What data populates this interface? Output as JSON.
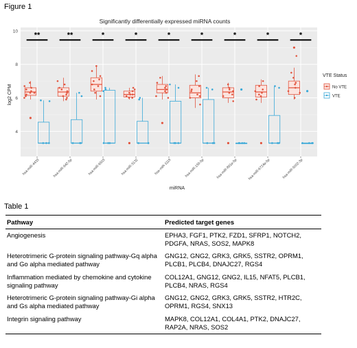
{
  "figure_label": "Figure 1",
  "table_label": "Table 1",
  "chart_data": {
    "type": "box",
    "title": "Significantly differentially expressed miRNA counts",
    "xlabel": "miRNA",
    "ylabel": "log2 CPM",
    "ylim": [
      2.5,
      10.2
    ],
    "yticks": [
      4,
      6,
      8,
      10
    ],
    "grid": true,
    "legend_title": "VTE Status",
    "legend_position": "right",
    "categories": [
      "hsa-miR-4433",
      "hsa-miR-942-5p",
      "hsa-miR-6503",
      "hsa-miR-3132",
      "hsa-miR-1118",
      "hsa-miR-155-5p",
      "hsa-miR-891a-5p",
      "hsa-miR-6724a-5p",
      "hsa-miR-5002-3p"
    ],
    "significance": [
      "**",
      "**",
      "*",
      "*",
      "*",
      "*",
      "*",
      "*",
      "*"
    ],
    "series": [
      {
        "name": "No VTE",
        "color": "#e2553f",
        "boxes": [
          {
            "q1": 6.15,
            "median": 6.35,
            "q3": 6.6,
            "whisker_low": 5.9,
            "whisker_high": 7.0,
            "outliers": [
              4.8
            ],
            "points": [
              6.0,
              6.2,
              6.3,
              6.4,
              6.5,
              6.6,
              6.9,
              6.1,
              6.3,
              6.7
            ]
          },
          {
            "q1": 6.1,
            "median": 6.35,
            "q3": 6.6,
            "whisker_low": 5.8,
            "whisker_high": 7.2,
            "outliers": [],
            "points": [
              5.9,
              6.1,
              6.3,
              6.4,
              6.6,
              6.8,
              7.0,
              6.2,
              6.5,
              6.0
            ]
          },
          {
            "q1": 6.4,
            "median": 6.8,
            "q3": 7.2,
            "whisker_low": 5.9,
            "whisker_high": 7.9,
            "outliers": [],
            "points": [
              6.1,
              6.5,
              6.8,
              7.0,
              7.3,
              7.6,
              7.9,
              6.7,
              6.3,
              7.1
            ]
          },
          {
            "q1": 6.05,
            "median": 6.2,
            "q3": 6.4,
            "whisker_low": 5.9,
            "whisker_high": 6.6,
            "outliers": [
              3.3
            ],
            "points": [
              6.0,
              6.1,
              6.2,
              6.3,
              6.4,
              6.5,
              6.6,
              6.2,
              6.0
            ]
          },
          {
            "q1": 6.3,
            "median": 6.5,
            "q3": 6.8,
            "whisker_low": 5.9,
            "whisker_high": 7.3,
            "outliers": [
              4.5
            ],
            "points": [
              6.1,
              6.3,
              6.5,
              6.6,
              6.9,
              7.2,
              6.4,
              6.7,
              6.0
            ]
          },
          {
            "q1": 6.0,
            "median": 6.3,
            "q3": 6.75,
            "whisker_low": 5.4,
            "whisker_high": 7.4,
            "outliers": [],
            "points": [
              5.6,
              6.0,
              6.2,
              6.4,
              6.7,
              7.0,
              7.3,
              6.1,
              6.5
            ]
          },
          {
            "q1": 6.0,
            "median": 6.35,
            "q3": 6.6,
            "whisker_low": 5.7,
            "whisker_high": 6.9,
            "outliers": [
              3.3
            ],
            "points": [
              5.8,
              6.1,
              6.3,
              6.4,
              6.6,
              6.8,
              6.2,
              6.5
            ]
          },
          {
            "q1": 6.05,
            "median": 6.35,
            "q3": 6.75,
            "whisker_low": 5.7,
            "whisker_high": 7.1,
            "outliers": [
              3.3
            ],
            "points": [
              5.9,
              6.1,
              6.3,
              6.5,
              6.7,
              7.0,
              6.2,
              6.4
            ]
          },
          {
            "q1": 6.2,
            "median": 6.6,
            "q3": 7.0,
            "whisker_low": 5.9,
            "whisker_high": 7.8,
            "outliers": [
              9.0
            ],
            "points": [
              6.0,
              6.3,
              6.6,
              6.9,
              7.2,
              7.5,
              8.5,
              6.4,
              6.8
            ]
          }
        ]
      },
      {
        "name": "VTE",
        "color": "#3aa9d8",
        "boxes": [
          {
            "q1": 3.3,
            "median": 3.3,
            "q3": 4.55,
            "whisker_low": 3.3,
            "whisker_high": 5.85,
            "outliers": [],
            "points": [
              3.3,
              3.3,
              3.3,
              5.8,
              5.85
            ]
          },
          {
            "q1": 3.3,
            "median": 3.3,
            "q3": 4.7,
            "whisker_low": 3.3,
            "whisker_high": 6.3,
            "outliers": [],
            "points": [
              3.3,
              3.3,
              3.3,
              6.3,
              6.1
            ]
          },
          {
            "q1": 3.3,
            "median": 3.3,
            "q3": 6.45,
            "whisker_low": 3.3,
            "whisker_high": 6.6,
            "outliers": [],
            "points": [
              3.3,
              3.3,
              3.3,
              6.4,
              6.5,
              6.6
            ]
          },
          {
            "q1": 3.3,
            "median": 3.3,
            "q3": 4.6,
            "whisker_low": 3.3,
            "whisker_high": 6.0,
            "outliers": [],
            "points": [
              3.3,
              3.3,
              3.3,
              5.9,
              6.0
            ]
          },
          {
            "q1": 3.3,
            "median": 3.3,
            "q3": 5.8,
            "whisker_low": 3.3,
            "whisker_high": 6.8,
            "outliers": [],
            "points": [
              3.3,
              3.3,
              3.3,
              6.6,
              6.8
            ]
          },
          {
            "q1": 3.3,
            "median": 3.3,
            "q3": 5.9,
            "whisker_low": 3.3,
            "whisker_high": 6.6,
            "outliers": [],
            "points": [
              3.3,
              3.3,
              3.3,
              6.5,
              6.6
            ]
          },
          {
            "q1": 3.3,
            "median": 3.3,
            "q3": 3.3,
            "whisker_low": 3.3,
            "whisker_high": 3.3,
            "outliers": [
              6.5
            ],
            "points": [
              3.3,
              3.3,
              3.3,
              3.3
            ]
          },
          {
            "q1": 3.3,
            "median": 3.3,
            "q3": 4.95,
            "whisker_low": 3.3,
            "whisker_high": 6.7,
            "outliers": [],
            "points": [
              3.3,
              3.3,
              3.3,
              6.6,
              6.7
            ]
          },
          {
            "q1": 3.3,
            "median": 3.3,
            "q3": 3.3,
            "whisker_low": 3.3,
            "whisker_high": 3.3,
            "outliers": [
              6.4
            ],
            "points": [
              3.3,
              3.3,
              3.3,
              3.3
            ]
          }
        ]
      }
    ]
  },
  "table": {
    "headers": [
      "Pathway",
      "Predicted target genes"
    ],
    "rows": [
      {
        "pathway": "Angiogenesis",
        "genes": "EPHA3, FGF1, PTK2, FZD1, SFRP1, NOTCH2, PDGFA, NRAS, SOS2, MAPK8"
      },
      {
        "pathway": "Heterotrimeric G-protein signaling pathway-Gq alpha and Go alpha mediated pathway",
        "genes": "GNG12, GNG2, GRK3, GRK5, SSTR2, OPRM1, PLCB1, PLCB4, DNAJC27, RGS4"
      },
      {
        "pathway": "Inflammation mediated by chemokine and cytokine signaling pathway",
        "genes": "COL12A1, GNG12, GNG2, IL15, NFAT5, PLCB1, PLCB4, NRAS, RGS4"
      },
      {
        "pathway": "Heterotrimeric G-protein signaling pathway-Gi alpha and Gs alpha mediated pathway",
        "genes": "GNG12, GNG2, GRK3, GRK5, SSTR2, HTR2C, OPRM1, RGS4, SNX13"
      },
      {
        "pathway": "Integrin signaling pathway",
        "genes": "MAPK8, COL12A1, COL4A1, PTK2, DNAJC27, RAP2A, NRAS, SOS2"
      }
    ]
  }
}
